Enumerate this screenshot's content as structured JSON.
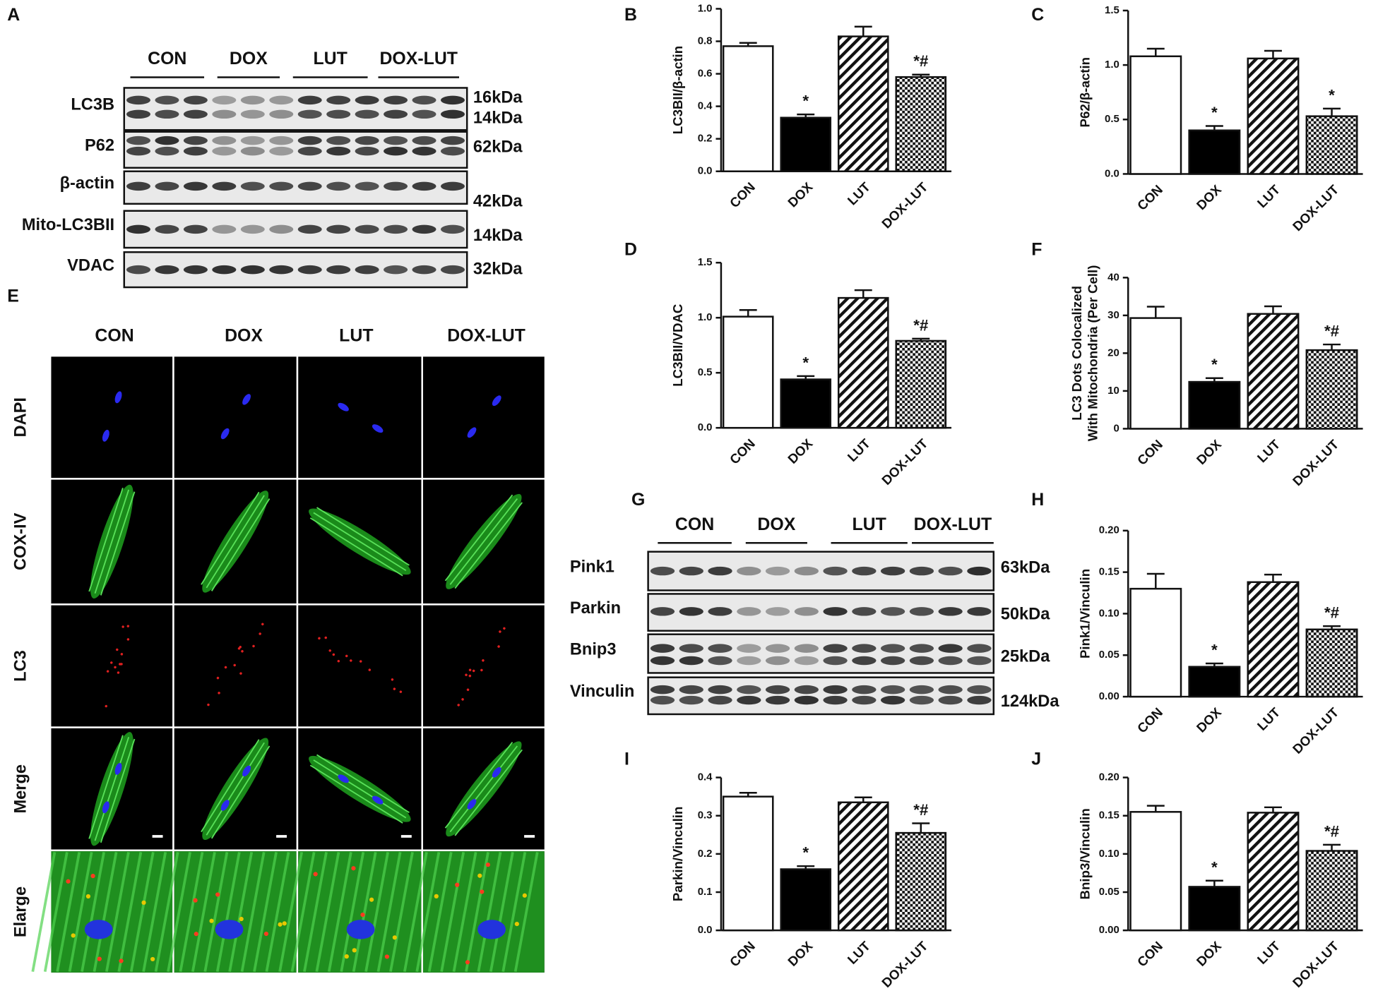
{
  "blot_A": {
    "panel": "A",
    "groups": [
      "CON",
      "DOX",
      "LUT",
      "DOX-LUT"
    ],
    "rows": [
      {
        "label": "LC3B",
        "kda": [
          "16kDa",
          "14kDa"
        ]
      },
      {
        "label": "P62",
        "kda": [
          "62kDa"
        ]
      },
      {
        "label": "β-actin",
        "kda": [
          "42kDa"
        ]
      },
      {
        "label": "Mito-LC3BII",
        "kda": [
          "14kDa"
        ]
      },
      {
        "label": "VDAC",
        "kda": [
          "32kDa"
        ]
      }
    ]
  },
  "imaging_E": {
    "panel": "E",
    "columns": [
      "CON",
      "DOX",
      "LUT",
      "DOX-LUT"
    ],
    "rows": [
      "DAPI",
      "COX-IV",
      "LC3",
      "Merge",
      "Elarge"
    ]
  },
  "blot_G": {
    "panel": "G",
    "groups": [
      "CON",
      "DOX",
      "LUT",
      "DOX-LUT"
    ],
    "rows": [
      {
        "label": "Pink1",
        "kda": [
          "63kDa"
        ]
      },
      {
        "label": "Parkin",
        "kda": [
          "50kDa"
        ]
      },
      {
        "label": "Bnip3",
        "kda": [
          "25kDa"
        ]
      },
      {
        "label": "Vinculin",
        "kda": [
          "124kDa"
        ]
      }
    ]
  },
  "chart_data": [
    {
      "type": "bar",
      "panel": "B",
      "ylabel": "LC3BII/β-actin",
      "categories": [
        "CON",
        "DOX",
        "LUT",
        "DOX-LUT"
      ],
      "values": [
        0.77,
        0.33,
        0.83,
        0.58
      ],
      "errors": [
        0.02,
        0.02,
        0.06,
        0.015
      ],
      "annotations": [
        null,
        "*",
        null,
        "*#"
      ],
      "fills": [
        "white",
        "black",
        "hatch",
        "checker"
      ],
      "ylim": [
        0,
        1
      ],
      "yticks": [
        {
          "value": 0,
          "label": "0.0"
        },
        0.2,
        0.4,
        0.6,
        0.8,
        {
          "value": 1,
          "label": "1.0"
        }
      ]
    },
    {
      "type": "bar",
      "panel": "C",
      "ylabel": "P62/β-actin",
      "categories": [
        "CON",
        "DOX",
        "LUT",
        "DOX-LUT"
      ],
      "values": [
        1.08,
        0.4,
        1.06,
        0.53
      ],
      "errors": [
        0.07,
        0.04,
        0.07,
        0.07
      ],
      "annotations": [
        null,
        "*",
        null,
        "*"
      ],
      "fills": [
        "white",
        "black",
        "hatch",
        "checker"
      ],
      "ylim": [
        0,
        1.5
      ],
      "yticks": [
        {
          "value": 0,
          "label": "0.0"
        },
        0.5,
        {
          "value": 1,
          "label": "1.0"
        },
        1.5
      ]
    },
    {
      "type": "bar",
      "panel": "D",
      "ylabel": "LC3BII/VDAC",
      "categories": [
        "CON",
        "DOX",
        "LUT",
        "DOX-LUT"
      ],
      "values": [
        1.01,
        0.44,
        1.18,
        0.79
      ],
      "errors": [
        0.06,
        0.03,
        0.07,
        0.02
      ],
      "annotations": [
        null,
        "*",
        null,
        "*#"
      ],
      "fills": [
        "white",
        "black",
        "hatch",
        "checker"
      ],
      "ylim": [
        0,
        1.5
      ],
      "yticks": [
        {
          "value": 0,
          "label": "0.0"
        },
        0.5,
        {
          "value": 1,
          "label": "1.0"
        },
        1.5
      ]
    },
    {
      "type": "bar",
      "panel": "F",
      "ylabel": [
        "LC3 Dots Colocalized",
        "With Mitochondria (Per Cell)"
      ],
      "categories": [
        "CON",
        "DOX",
        "LUT",
        "DOX-LUT"
      ],
      "values": [
        29.3,
        12.4,
        30.4,
        20.8
      ],
      "errors": [
        3,
        1,
        2,
        1.5
      ],
      "annotations": [
        null,
        "*",
        null,
        "*#"
      ],
      "fills": [
        "white",
        "black",
        "hatch",
        "checker"
      ],
      "ylim": [
        0,
        40
      ],
      "yticks": [
        0,
        10,
        20,
        30,
        40
      ]
    },
    {
      "type": "bar",
      "panel": "H",
      "ylabel": "Pink1/Vinculin",
      "categories": [
        "CON",
        "DOX",
        "LUT",
        "DOX-LUT"
      ],
      "values": [
        0.13,
        0.036,
        0.138,
        0.081
      ],
      "errors": [
        0.018,
        0.004,
        0.009,
        0.004
      ],
      "annotations": [
        null,
        "*",
        null,
        "*#"
      ],
      "fills": [
        "white",
        "black",
        "hatch",
        "checker"
      ],
      "ylim": [
        0,
        0.2
      ],
      "yticks": [
        {
          "value": 0,
          "label": "0.00"
        },
        0.05,
        {
          "value": 0.1,
          "label": "0.10"
        },
        0.15,
        {
          "value": 0.2,
          "label": "0.20"
        }
      ]
    },
    {
      "type": "bar",
      "panel": "I",
      "ylabel": "Parkin/Vinculin",
      "categories": [
        "CON",
        "DOX",
        "LUT",
        "DOX-LUT"
      ],
      "values": [
        0.35,
        0.16,
        0.335,
        0.255
      ],
      "errors": [
        0.01,
        0.008,
        0.013,
        0.025
      ],
      "annotations": [
        null,
        "*",
        null,
        "*#"
      ],
      "fills": [
        "white",
        "black",
        "hatch",
        "checker"
      ],
      "ylim": [
        0,
        0.4
      ],
      "yticks": [
        {
          "value": 0,
          "label": "0.0"
        },
        0.1,
        0.2,
        0.3,
        0.4
      ]
    },
    {
      "type": "bar",
      "panel": "J",
      "ylabel": "Bnip3/Vinculin",
      "categories": [
        "CON",
        "DOX",
        "LUT",
        "DOX-LUT"
      ],
      "values": [
        0.155,
        0.057,
        0.154,
        0.104
      ],
      "errors": [
        0.008,
        0.008,
        0.007,
        0.008
      ],
      "annotations": [
        null,
        "*",
        null,
        "*#"
      ],
      "fills": [
        "white",
        "black",
        "hatch",
        "checker"
      ],
      "ylim": [
        0,
        0.2
      ],
      "yticks": [
        {
          "value": 0,
          "label": "0.00"
        },
        0.05,
        {
          "value": 0.1,
          "label": "0.10"
        },
        0.15,
        {
          "value": 0.2,
          "label": "0.20"
        }
      ]
    }
  ]
}
